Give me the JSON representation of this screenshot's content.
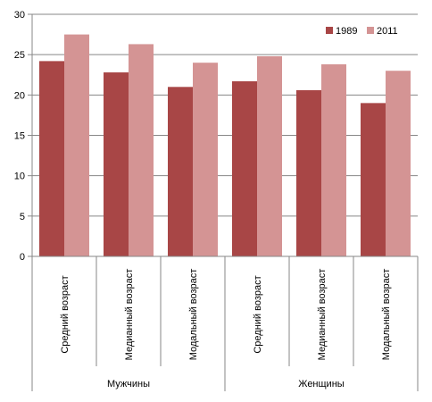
{
  "chart_data": {
    "type": "bar",
    "title": "",
    "xlabel": "",
    "ylabel": "",
    "ylim": [
      0,
      30
    ],
    "yticks": [
      0,
      5,
      10,
      15,
      20,
      25,
      30
    ],
    "grid": true,
    "legend_position": "top-right",
    "groups": [
      {
        "label": "Мужчины",
        "categories": [
          "Средний возраст",
          "Медианный возраст",
          "Модальный возраст"
        ]
      },
      {
        "label": "Женщины",
        "categories": [
          "Средний возраст",
          "Медианный возраст",
          "Модальный возраст"
        ]
      }
    ],
    "categories": [
      "Средний возраст",
      "Медианный возраст",
      "Модальный возраст",
      "Средний возраст",
      "Медианный возраст",
      "Модальный возраст"
    ],
    "series": [
      {
        "name": "1989",
        "color": "#A84646",
        "values": [
          24.2,
          22.8,
          21.0,
          21.7,
          20.6,
          19.0
        ]
      },
      {
        "name": "2011",
        "color": "#D49494",
        "values": [
          27.5,
          26.3,
          24.0,
          24.8,
          23.8,
          23.0
        ]
      }
    ]
  },
  "colors": {
    "gridline": "#878787",
    "axis": "#878787"
  }
}
